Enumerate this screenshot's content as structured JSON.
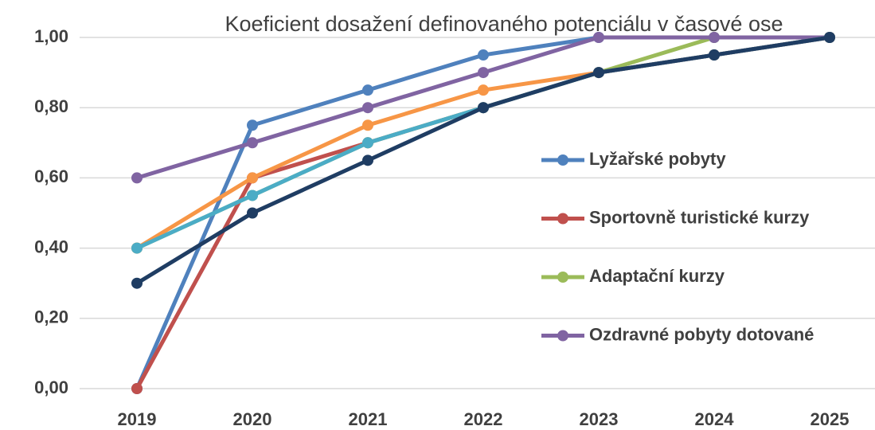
{
  "chart_data": {
    "type": "line",
    "title": "Koeficient dosažení definovaného potenciálu v časové ose",
    "categories": [
      "2019",
      "2020",
      "2021",
      "2022",
      "2023",
      "2024",
      "2025"
    ],
    "series": [
      {
        "name": "Lyžařské pobyty",
        "color": "#4f81bd",
        "values": [
          0,
          0.75,
          0.85,
          0.95,
          1,
          1,
          1
        ]
      },
      {
        "name": "Sportovně turistické kurzy",
        "color": "#c0504d",
        "values": [
          0,
          0.6,
          0.7,
          0.8,
          0.9,
          0.95,
          1
        ]
      },
      {
        "name": "Adaptační kurzy",
        "color": "#9bbb59",
        "values": [
          0.4,
          0.55,
          0.7,
          0.8,
          0.9,
          1,
          1
        ]
      },
      {
        "name": "Ozdravné pobyty dotované",
        "color": "#8064a2",
        "values": [
          0.6,
          0.7,
          0.8,
          0.9,
          1,
          1,
          1
        ]
      },
      {
        "color": "#f79646",
        "values": [
          0.4,
          0.6,
          0.75,
          0.85,
          0.9,
          0.95,
          1
        ]
      },
      {
        "color": "#4bacc6",
        "values": [
          0.4,
          0.55,
          0.7,
          0.8,
          0.9,
          0.95,
          1
        ]
      },
      {
        "color": "#1f3d63",
        "values": [
          0.3,
          0.5,
          0.65,
          0.8,
          0.9,
          0.95,
          1
        ]
      }
    ],
    "ylim": [
      0,
      1
    ],
    "yticks": [
      {
        "value": 0,
        "label": "0,00"
      },
      {
        "value": 0.2,
        "label": "0,20"
      },
      {
        "value": 0.4,
        "label": "0,40"
      },
      {
        "value": 0.6,
        "label": "0,60"
      },
      {
        "value": 0.8,
        "label": "0,80"
      },
      {
        "value": 1,
        "label": "1,00"
      }
    ],
    "grid": true,
    "legend": "right"
  }
}
